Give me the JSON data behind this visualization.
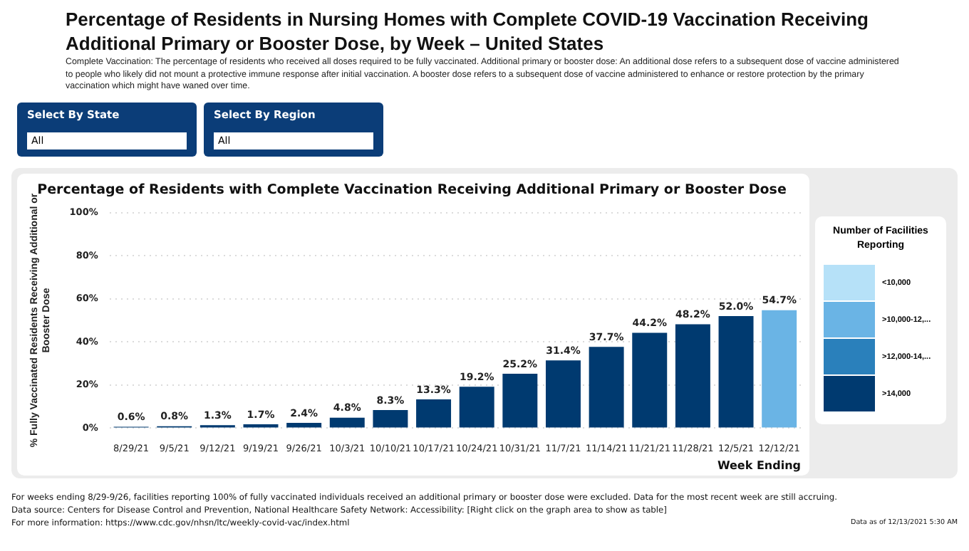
{
  "chart_data": {
    "type": "bar",
    "title": "Percentage of Residents in Nursing Homes with Complete COVID-19 Vaccination Receiving Additional Primary or Booster Dose, by Week – United States",
    "subtitle": "Percentage of Residents with Complete Vaccination Receiving Additional Primary or Booster Dose",
    "xlabel": "Week Ending",
    "ylabel": "% Fully Vaccinated Residents Receiving Additional or Booster Dose",
    "legend_title": "Number of Facilities Reporting",
    "categories": [
      "8/29/21",
      "9/5/21",
      "9/12/21",
      "9/19/21",
      "9/26/21",
      "10/3/21",
      "10/10/21",
      "10/17/21",
      "10/24/21",
      "10/31/21",
      "11/7/21",
      "11/14/21",
      "11/21/21",
      "11/28/21",
      "12/5/21",
      "12/12/21"
    ],
    "values": [
      0.6,
      0.8,
      1.3,
      1.7,
      2.4,
      4.8,
      8.3,
      13.3,
      19.2,
      25.2,
      31.4,
      37.7,
      44.2,
      48.2,
      52.0,
      54.7
    ],
    "colors": [
      "#003a70",
      "#003a70",
      "#003a70",
      "#003a70",
      "#003a70",
      "#003a70",
      "#003a70",
      "#003a70",
      "#003a70",
      "#003a70",
      "#003a70",
      "#003a70",
      "#003a70",
      "#003a70",
      "#003a70",
      "#6ab4e5"
    ],
    "value_labels": [
      "0.6%",
      "0.8%",
      "1.3%",
      "1.7%",
      "2.4%",
      "4.8%",
      "8.3%",
      "13.3%",
      "19.2%",
      "25.2%",
      "31.4%",
      "37.7%",
      "44.2%",
      "48.2%",
      "52.0%",
      "54.7%"
    ],
    "ylim": [
      0,
      100
    ],
    "yticks": [
      {
        "value": 0,
        "label": "0%"
      },
      {
        "value": 20,
        "label": "20%"
      },
      {
        "value": 40,
        "label": "40%"
      },
      {
        "value": 60,
        "label": "60%"
      },
      {
        "value": 80,
        "label": "80%"
      },
      {
        "value": 100,
        "label": "100%"
      }
    ],
    "grid": "y",
    "annotations": [
      "Complete Vaccination:  The percentage of residents who received all doses required to be fully vaccinated.  Additional primary or booster dose:  An additional dose refers to a subsequent dose of vaccine administered to people who likely did not mount a protective immune response after initial vaccination. A booster dose refers to a subsequent dose of vaccine administered to enhance or restore protection by the primary vaccination which might have waned over time.",
      "Select By State",
      "All",
      "Select By Region",
      "All",
      "For weeks ending 8/29-9/26, facilities reporting 100% of fully vaccinated individuals received an additional primary or booster dose were excluded.  Data for the most recent week are still accruing.",
      "Data source: Centers for Disease Control and Prevention, National Healthcare Safety Network: Accessibility: [Right click on the graph area to show as table]",
      "For more information: https://www.cdc.gov/nhsn/ltc/weekly-covid-vac/index.html",
      "Data as of 12/13/2021 5:30 AM",
      "<10,000",
      ">10,000-12,...",
      ">12,000-14,...",
      ">14,000"
    ]
  }
}
